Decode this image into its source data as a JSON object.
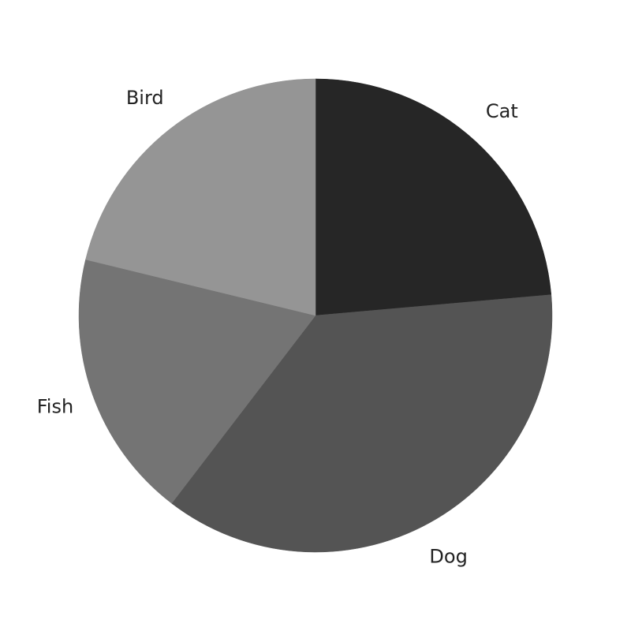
{
  "chart_data": {
    "type": "pie",
    "title": "",
    "categories": [
      "Cat",
      "Dog",
      "Fish",
      "Bird"
    ],
    "values": [
      23.6,
      36.8,
      18.4,
      21.2
    ],
    "colors": [
      "#262626",
      "#545454",
      "#747474",
      "#959595"
    ],
    "start_angle_deg": 0,
    "direction": "clockwise",
    "legend": false,
    "labels_outside": true
  }
}
